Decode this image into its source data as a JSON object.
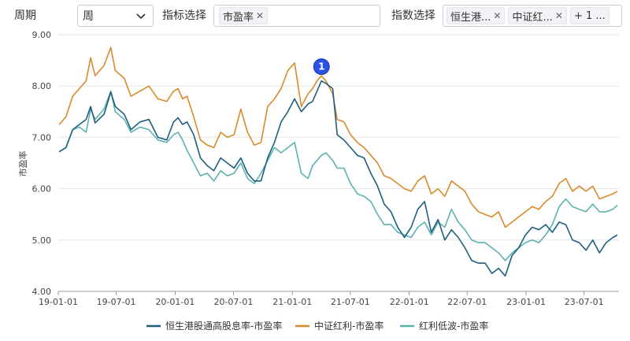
{
  "controls": {
    "period_label": "周期",
    "period_value": "周",
    "indicator_label": "指标选择",
    "indicator_tag": "市盈率",
    "index_label": "指数选择",
    "index_tags": [
      "恒生港...",
      "中证红..."
    ],
    "index_more": "+ 1 ..."
  },
  "colors": {
    "hsg": "#1f5e80",
    "zzhl": "#d98a2b",
    "hldb": "#5bb3b0",
    "grid": "#e6e6e6",
    "marker": "#2a52e0"
  },
  "marker_label": "1",
  "chart_data": {
    "type": "line",
    "ylabel": "市盈率",
    "ylim": [
      4.0,
      9.0
    ],
    "y_ticks": [
      "9.00",
      "8.00",
      "7.00",
      "6.00",
      "5.00",
      "4.00"
    ],
    "x_ticks": [
      "19-01-01",
      "19-07-01",
      "20-01-01",
      "20-07-01",
      "21-01-01",
      "21-07-01",
      "22-01-01",
      "22-07-01",
      "23-01-01",
      "23-07-01"
    ],
    "series": [
      {
        "name": "恒生港股通高股息率-市盈率",
        "points": [
          [
            "2019-01-04",
            6.72
          ],
          [
            "2019-01-25",
            6.8
          ],
          [
            "2019-02-15",
            7.15
          ],
          [
            "2019-03-08",
            7.25
          ],
          [
            "2019-03-29",
            7.35
          ],
          [
            "2019-04-12",
            7.6
          ],
          [
            "2019-04-26",
            7.28
          ],
          [
            "2019-05-24",
            7.45
          ],
          [
            "2019-06-14",
            7.88
          ],
          [
            "2019-06-28",
            7.6
          ],
          [
            "2019-07-26",
            7.45
          ],
          [
            "2019-08-16",
            7.15
          ],
          [
            "2019-09-13",
            7.3
          ],
          [
            "2019-10-11",
            7.35
          ],
          [
            "2019-11-08",
            7.0
          ],
          [
            "2019-12-06",
            6.95
          ],
          [
            "2019-12-27",
            7.3
          ],
          [
            "2020-01-10",
            7.38
          ],
          [
            "2020-01-24",
            7.25
          ],
          [
            "2020-02-07",
            7.3
          ],
          [
            "2020-02-28",
            7.05
          ],
          [
            "2020-03-20",
            6.6
          ],
          [
            "2020-04-10",
            6.45
          ],
          [
            "2020-05-01",
            6.35
          ],
          [
            "2020-05-22",
            6.6
          ],
          [
            "2020-06-12",
            6.5
          ],
          [
            "2020-07-03",
            6.4
          ],
          [
            "2020-07-24",
            6.6
          ],
          [
            "2020-08-14",
            6.3
          ],
          [
            "2020-09-04",
            6.15
          ],
          [
            "2020-09-25",
            6.15
          ],
          [
            "2020-10-16",
            6.6
          ],
          [
            "2020-11-06",
            6.9
          ],
          [
            "2020-11-27",
            7.3
          ],
          [
            "2020-12-18",
            7.5
          ],
          [
            "2021-01-08",
            7.75
          ],
          [
            "2021-01-29",
            7.5
          ],
          [
            "2021-02-19",
            7.65
          ],
          [
            "2021-03-05",
            7.7
          ],
          [
            "2021-03-19",
            7.9
          ],
          [
            "2021-04-02",
            8.1
          ],
          [
            "2021-04-16",
            8.05
          ],
          [
            "2021-05-07",
            7.95
          ],
          [
            "2021-05-21",
            7.05
          ],
          [
            "2021-06-11",
            6.95
          ],
          [
            "2021-07-02",
            6.8
          ],
          [
            "2021-07-23",
            6.65
          ],
          [
            "2021-08-13",
            6.6
          ],
          [
            "2021-09-03",
            6.3
          ],
          [
            "2021-09-24",
            6.05
          ],
          [
            "2021-10-15",
            5.7
          ],
          [
            "2021-11-05",
            5.55
          ],
          [
            "2021-11-26",
            5.25
          ],
          [
            "2021-12-17",
            5.05
          ],
          [
            "2022-01-07",
            5.25
          ],
          [
            "2022-01-28",
            5.6
          ],
          [
            "2022-02-18",
            5.75
          ],
          [
            "2022-03-11",
            5.15
          ],
          [
            "2022-04-01",
            5.4
          ],
          [
            "2022-04-22",
            5.0
          ],
          [
            "2022-05-13",
            5.2
          ],
          [
            "2022-06-03",
            5.05
          ],
          [
            "2022-06-24",
            4.85
          ],
          [
            "2022-07-15",
            4.6
          ],
          [
            "2022-08-05",
            4.55
          ],
          [
            "2022-08-26",
            4.55
          ],
          [
            "2022-09-16",
            4.35
          ],
          [
            "2022-10-07",
            4.45
          ],
          [
            "2022-10-28",
            4.3
          ],
          [
            "2022-11-18",
            4.7
          ],
          [
            "2022-12-09",
            4.85
          ],
          [
            "2022-12-30",
            5.1
          ],
          [
            "2023-01-20",
            5.25
          ],
          [
            "2023-02-10",
            5.2
          ],
          [
            "2023-03-03",
            5.3
          ],
          [
            "2023-03-24",
            5.15
          ],
          [
            "2023-04-14",
            5.35
          ],
          [
            "2023-05-05",
            5.3
          ],
          [
            "2023-05-26",
            5.0
          ],
          [
            "2023-06-16",
            4.95
          ],
          [
            "2023-07-07",
            4.8
          ],
          [
            "2023-07-28",
            5.0
          ],
          [
            "2023-08-18",
            4.75
          ],
          [
            "2023-09-08",
            4.95
          ],
          [
            "2023-09-29",
            5.05
          ],
          [
            "2023-10-13",
            5.1
          ]
        ]
      },
      {
        "name": "中证红利-市盈率",
        "points": [
          [
            "2019-01-04",
            7.25
          ],
          [
            "2019-01-25",
            7.4
          ],
          [
            "2019-02-15",
            7.8
          ],
          [
            "2019-03-08",
            7.95
          ],
          [
            "2019-03-29",
            8.1
          ],
          [
            "2019-04-12",
            8.55
          ],
          [
            "2019-04-26",
            8.2
          ],
          [
            "2019-05-24",
            8.4
          ],
          [
            "2019-06-14",
            8.75
          ],
          [
            "2019-06-28",
            8.3
          ],
          [
            "2019-07-26",
            8.15
          ],
          [
            "2019-08-16",
            7.8
          ],
          [
            "2019-09-13",
            7.9
          ],
          [
            "2019-10-11",
            8.0
          ],
          [
            "2019-11-08",
            7.75
          ],
          [
            "2019-12-06",
            7.7
          ],
          [
            "2019-12-27",
            7.9
          ],
          [
            "2020-01-10",
            7.95
          ],
          [
            "2020-01-24",
            7.75
          ],
          [
            "2020-02-07",
            7.8
          ],
          [
            "2020-02-28",
            7.4
          ],
          [
            "2020-03-20",
            6.95
          ],
          [
            "2020-04-10",
            6.85
          ],
          [
            "2020-05-01",
            6.8
          ],
          [
            "2020-05-22",
            7.1
          ],
          [
            "2020-06-12",
            7.0
          ],
          [
            "2020-07-03",
            7.05
          ],
          [
            "2020-07-24",
            7.55
          ],
          [
            "2020-08-14",
            7.1
          ],
          [
            "2020-09-04",
            6.85
          ],
          [
            "2020-09-25",
            6.9
          ],
          [
            "2020-10-16",
            7.6
          ],
          [
            "2020-11-06",
            7.75
          ],
          [
            "2020-11-27",
            7.95
          ],
          [
            "2020-12-18",
            8.3
          ],
          [
            "2021-01-08",
            8.45
          ],
          [
            "2021-01-29",
            7.6
          ],
          [
            "2021-02-19",
            7.85
          ],
          [
            "2021-03-05",
            7.95
          ],
          [
            "2021-03-19",
            8.1
          ],
          [
            "2021-04-02",
            8.2
          ],
          [
            "2021-04-16",
            8.1
          ],
          [
            "2021-05-07",
            7.85
          ],
          [
            "2021-05-21",
            7.35
          ],
          [
            "2021-06-11",
            7.3
          ],
          [
            "2021-07-02",
            7.05
          ],
          [
            "2021-07-23",
            6.9
          ],
          [
            "2021-08-13",
            6.8
          ],
          [
            "2021-09-03",
            6.65
          ],
          [
            "2021-09-24",
            6.5
          ],
          [
            "2021-10-15",
            6.25
          ],
          [
            "2021-11-05",
            6.2
          ],
          [
            "2021-11-26",
            6.1
          ],
          [
            "2021-12-17",
            6.0
          ],
          [
            "2022-01-07",
            5.95
          ],
          [
            "2022-01-28",
            6.15
          ],
          [
            "2022-02-18",
            6.25
          ],
          [
            "2022-03-11",
            5.9
          ],
          [
            "2022-04-01",
            6.0
          ],
          [
            "2022-04-22",
            5.85
          ],
          [
            "2022-05-13",
            6.15
          ],
          [
            "2022-06-03",
            6.05
          ],
          [
            "2022-06-24",
            5.95
          ],
          [
            "2022-07-15",
            5.7
          ],
          [
            "2022-08-05",
            5.55
          ],
          [
            "2022-08-26",
            5.5
          ],
          [
            "2022-09-16",
            5.45
          ],
          [
            "2022-10-07",
            5.55
          ],
          [
            "2022-10-28",
            5.25
          ],
          [
            "2022-11-18",
            5.35
          ],
          [
            "2022-12-09",
            5.45
          ],
          [
            "2022-12-30",
            5.55
          ],
          [
            "2023-01-20",
            5.65
          ],
          [
            "2023-02-10",
            5.6
          ],
          [
            "2023-03-03",
            5.75
          ],
          [
            "2023-03-24",
            5.85
          ],
          [
            "2023-04-14",
            6.1
          ],
          [
            "2023-05-05",
            6.2
          ],
          [
            "2023-05-26",
            5.95
          ],
          [
            "2023-06-16",
            6.05
          ],
          [
            "2023-07-07",
            5.95
          ],
          [
            "2023-07-28",
            6.05
          ],
          [
            "2023-08-18",
            5.8
          ],
          [
            "2023-09-08",
            5.85
          ],
          [
            "2023-09-29",
            5.9
          ],
          [
            "2023-10-13",
            5.95
          ]
        ]
      },
      {
        "name": "红利低波-市盈率",
        "points": [
          [
            "2019-01-04",
            6.72
          ],
          [
            "2019-01-25",
            6.8
          ],
          [
            "2019-02-15",
            7.15
          ],
          [
            "2019-03-08",
            7.2
          ],
          [
            "2019-03-29",
            7.1
          ],
          [
            "2019-04-12",
            7.55
          ],
          [
            "2019-04-26",
            7.35
          ],
          [
            "2019-05-24",
            7.55
          ],
          [
            "2019-06-14",
            7.9
          ],
          [
            "2019-06-28",
            7.5
          ],
          [
            "2019-07-26",
            7.35
          ],
          [
            "2019-08-16",
            7.1
          ],
          [
            "2019-09-13",
            7.2
          ],
          [
            "2019-10-11",
            7.15
          ],
          [
            "2019-11-08",
            6.95
          ],
          [
            "2019-12-06",
            6.9
          ],
          [
            "2019-12-27",
            7.05
          ],
          [
            "2020-01-10",
            7.1
          ],
          [
            "2020-01-24",
            6.95
          ],
          [
            "2020-02-07",
            6.75
          ],
          [
            "2020-02-28",
            6.5
          ],
          [
            "2020-03-20",
            6.25
          ],
          [
            "2020-04-10",
            6.3
          ],
          [
            "2020-05-01",
            6.15
          ],
          [
            "2020-05-22",
            6.35
          ],
          [
            "2020-06-12",
            6.25
          ],
          [
            "2020-07-03",
            6.3
          ],
          [
            "2020-07-24",
            6.5
          ],
          [
            "2020-08-14",
            6.2
          ],
          [
            "2020-09-04",
            6.1
          ],
          [
            "2020-09-25",
            6.3
          ],
          [
            "2020-10-16",
            6.55
          ],
          [
            "2020-11-06",
            6.8
          ],
          [
            "2020-11-27",
            6.7
          ],
          [
            "2020-12-18",
            6.8
          ],
          [
            "2021-01-08",
            6.9
          ],
          [
            "2021-01-29",
            6.3
          ],
          [
            "2021-02-19",
            6.2
          ],
          [
            "2021-03-05",
            6.45
          ],
          [
            "2021-03-19",
            6.55
          ],
          [
            "2021-04-02",
            6.65
          ],
          [
            "2021-04-16",
            6.7
          ],
          [
            "2021-05-07",
            6.55
          ],
          [
            "2021-05-21",
            6.4
          ],
          [
            "2021-06-11",
            6.4
          ],
          [
            "2021-07-02",
            6.1
          ],
          [
            "2021-07-23",
            5.9
          ],
          [
            "2021-08-13",
            5.85
          ],
          [
            "2021-09-03",
            5.75
          ],
          [
            "2021-09-24",
            5.5
          ],
          [
            "2021-10-15",
            5.3
          ],
          [
            "2021-11-05",
            5.3
          ],
          [
            "2021-11-26",
            5.15
          ],
          [
            "2021-12-17",
            5.1
          ],
          [
            "2022-01-07",
            5.05
          ],
          [
            "2022-01-28",
            5.25
          ],
          [
            "2022-02-18",
            5.35
          ],
          [
            "2022-03-11",
            5.1
          ],
          [
            "2022-04-01",
            5.35
          ],
          [
            "2022-04-22",
            5.25
          ],
          [
            "2022-05-13",
            5.6
          ],
          [
            "2022-06-03",
            5.35
          ],
          [
            "2022-06-24",
            5.2
          ],
          [
            "2022-07-15",
            5.0
          ],
          [
            "2022-08-05",
            4.95
          ],
          [
            "2022-08-26",
            4.95
          ],
          [
            "2022-09-16",
            4.85
          ],
          [
            "2022-10-07",
            4.75
          ],
          [
            "2022-10-28",
            4.6
          ],
          [
            "2022-11-18",
            4.75
          ],
          [
            "2022-12-09",
            4.85
          ],
          [
            "2022-12-30",
            4.95
          ],
          [
            "2023-01-20",
            5.0
          ],
          [
            "2023-02-10",
            4.95
          ],
          [
            "2023-03-03",
            5.1
          ],
          [
            "2023-03-24",
            5.3
          ],
          [
            "2023-04-14",
            5.65
          ],
          [
            "2023-05-05",
            5.8
          ],
          [
            "2023-05-26",
            5.65
          ],
          [
            "2023-06-16",
            5.6
          ],
          [
            "2023-07-07",
            5.55
          ],
          [
            "2023-07-28",
            5.7
          ],
          [
            "2023-08-18",
            5.55
          ],
          [
            "2023-09-08",
            5.55
          ],
          [
            "2023-09-29",
            5.6
          ],
          [
            "2023-10-13",
            5.68
          ]
        ]
      }
    ],
    "legend_position": "bottom",
    "grid": true
  }
}
